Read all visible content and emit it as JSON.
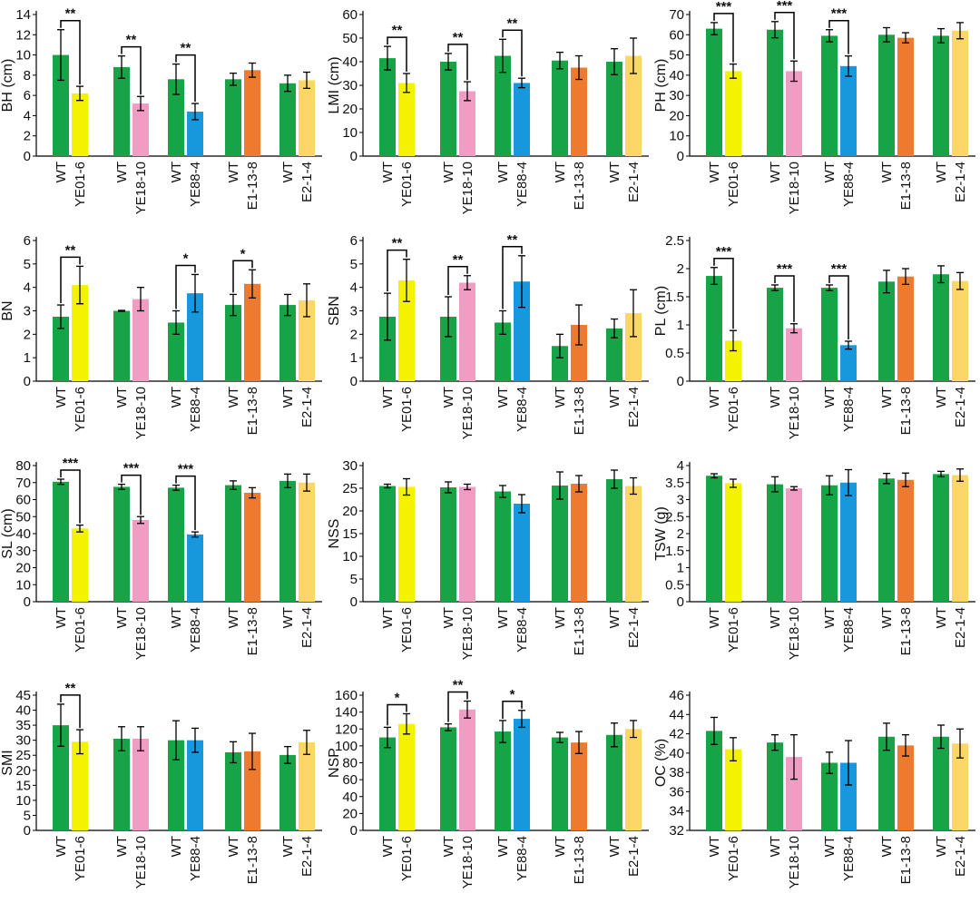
{
  "colors": {
    "WT": "#17a446",
    "YE01-6": "#f5f200",
    "YE18-10": "#f29cc4",
    "YE88-4": "#1798dc",
    "E1-13-8": "#ef7a2e",
    "E2-1-4": "#fdd66a"
  },
  "chart_data": [
    {
      "type": "bar",
      "ylabel": "BH (cm)",
      "ylim": [
        0,
        14
      ],
      "yticks": [
        0,
        2,
        4,
        6,
        8,
        10,
        12,
        14
      ],
      "ytick_labels": [
        "0",
        "2",
        "4",
        "6",
        "8",
        "10",
        "12",
        "14"
      ],
      "categories": [
        "WT",
        "YE01-6",
        "WT",
        "YE18-10",
        "WT",
        "YE88-4",
        "WT",
        "E1-13-8",
        "WT",
        "E2-1-4"
      ],
      "values": [
        10,
        6.2,
        8.8,
        5.2,
        7.6,
        4.4,
        7.6,
        8.5,
        7.2,
        7.5
      ],
      "errors": [
        2.5,
        0.7,
        1.1,
        0.7,
        1.5,
        0.8,
        0.6,
        0.7,
        0.8,
        0.8
      ],
      "significance": [
        {
          "pair": 0,
          "label": "**"
        },
        {
          "pair": 1,
          "label": "**"
        },
        {
          "pair": 2,
          "label": "**"
        }
      ]
    },
    {
      "type": "bar",
      "ylabel": "LMI (cm)",
      "ylim": [
        0,
        60
      ],
      "yticks": [
        0,
        10,
        20,
        30,
        40,
        50,
        60
      ],
      "ytick_labels": [
        "0",
        "10",
        "20",
        "30",
        "40",
        "50",
        "60"
      ],
      "categories": [
        "WT",
        "YE01-6",
        "WT",
        "YE18-10",
        "WT",
        "YE88-4",
        "WT",
        "E1-13-8",
        "WT",
        "E2-1-4"
      ],
      "values": [
        41.5,
        31,
        40,
        27.5,
        42.5,
        31,
        40.5,
        37.5,
        40,
        42.5
      ],
      "errors": [
        5,
        4,
        3.5,
        4,
        7,
        2,
        3.5,
        5,
        5.5,
        7.5
      ],
      "significance": [
        {
          "pair": 0,
          "label": "**"
        },
        {
          "pair": 1,
          "label": "**"
        },
        {
          "pair": 2,
          "label": "**"
        }
      ]
    },
    {
      "type": "bar",
      "ylabel": "PH (cm)",
      "ylim": [
        0,
        70
      ],
      "yticks": [
        0,
        10,
        20,
        30,
        40,
        50,
        60,
        70
      ],
      "ytick_labels": [
        "0",
        "10",
        "20",
        "30",
        "40",
        "50",
        "60",
        "70"
      ],
      "categories": [
        "WT",
        "YE01-6",
        "WT",
        "YE18-10",
        "WT",
        "YE88-4",
        "WT",
        "E1-13-8",
        "WT",
        "E2-1-4"
      ],
      "values": [
        63,
        42,
        62.5,
        42,
        59.5,
        44.5,
        60,
        58.5,
        59.5,
        62
      ],
      "errors": [
        3,
        3.5,
        4,
        5,
        3,
        5,
        3.5,
        2.5,
        3.5,
        4
      ],
      "significance": [
        {
          "pair": 0,
          "label": "***"
        },
        {
          "pair": 1,
          "label": "***"
        },
        {
          "pair": 2,
          "label": "***"
        }
      ]
    },
    {
      "type": "bar",
      "ylabel": "BN",
      "ylim": [
        0,
        6
      ],
      "yticks": [
        0,
        1,
        2,
        3,
        4,
        5,
        6
      ],
      "ytick_labels": [
        "0",
        "1",
        "2",
        "3",
        "4",
        "5",
        "6"
      ],
      "categories": [
        "WT",
        "YE01-6",
        "WT",
        "YE18-10",
        "WT",
        "YE88-4",
        "WT",
        "E1-13-8",
        "WT",
        "E2-1-4"
      ],
      "values": [
        2.75,
        4.1,
        3,
        3.5,
        2.5,
        3.75,
        3.25,
        4.15,
        3.25,
        3.45
      ],
      "errors": [
        0.5,
        0.8,
        0.02,
        0.5,
        0.5,
        0.8,
        0.45,
        0.6,
        0.45,
        0.7
      ],
      "significance": [
        {
          "pair": 0,
          "label": "**"
        },
        {
          "pair": 2,
          "label": "*"
        },
        {
          "pair": 3,
          "label": "*"
        }
      ]
    },
    {
      "type": "bar",
      "ylabel": "SBN",
      "ylim": [
        0,
        6
      ],
      "yticks": [
        0,
        1,
        2,
        3,
        4,
        5,
        6
      ],
      "ytick_labels": [
        "0",
        "1",
        "2",
        "3",
        "4",
        "5",
        "6"
      ],
      "categories": [
        "WT",
        "YE01-6",
        "WT",
        "YE18-10",
        "WT",
        "YE88-4",
        "WT",
        "E1-13-8",
        "WT",
        "E2-1-4"
      ],
      "values": [
        2.75,
        4.3,
        2.75,
        4.2,
        2.5,
        4.25,
        1.5,
        2.4,
        2.25,
        2.9
      ],
      "errors": [
        1,
        0.9,
        0.85,
        0.3,
        0.5,
        1.1,
        0.5,
        0.85,
        0.4,
        1
      ],
      "significance": [
        {
          "pair": 0,
          "label": "**"
        },
        {
          "pair": 1,
          "label": "**"
        },
        {
          "pair": 2,
          "label": "**"
        }
      ]
    },
    {
      "type": "bar",
      "ylabel": "PL (cm)",
      "ylim": [
        0,
        2.5
      ],
      "yticks": [
        0,
        0.5,
        1,
        1.5,
        2,
        2.5
      ],
      "ytick_labels": [
        "0",
        "0.5",
        "1",
        "1.5",
        "2",
        "2.5"
      ],
      "categories": [
        "WT",
        "YE01-6",
        "WT",
        "YE18-10",
        "WT",
        "YE88-4",
        "WT",
        "E1-13-8",
        "WT",
        "E2-1-4"
      ],
      "values": [
        1.87,
        0.72,
        1.66,
        0.94,
        1.66,
        0.64,
        1.77,
        1.86,
        1.9,
        1.78
      ],
      "errors": [
        0.15,
        0.18,
        0.05,
        0.08,
        0.05,
        0.07,
        0.2,
        0.14,
        0.15,
        0.15
      ],
      "significance": [
        {
          "pair": 0,
          "label": "***"
        },
        {
          "pair": 1,
          "label": "***"
        },
        {
          "pair": 2,
          "label": "***"
        }
      ]
    },
    {
      "type": "bar",
      "ylabel": "SL (cm)",
      "ylim": [
        0,
        80
      ],
      "yticks": [
        0,
        10,
        20,
        30,
        40,
        50,
        60,
        70,
        80
      ],
      "ytick_labels": [
        "0",
        "10",
        "20",
        "30",
        "40",
        "50",
        "60",
        "70",
        "80"
      ],
      "categories": [
        "WT",
        "YE01-6",
        "WT",
        "YE18-10",
        "WT",
        "YE88-4",
        "WT",
        "E1-13-8",
        "WT",
        "E2-1-4"
      ],
      "values": [
        70.5,
        43,
        67.5,
        48,
        67,
        39.5,
        68.5,
        64,
        71,
        70
      ],
      "errors": [
        1.5,
        2,
        1.5,
        2,
        1.5,
        1.5,
        2.5,
        3,
        4,
        5
      ],
      "significance": [
        {
          "pair": 0,
          "label": "***"
        },
        {
          "pair": 1,
          "label": "***"
        },
        {
          "pair": 2,
          "label": "***"
        }
      ]
    },
    {
      "type": "bar",
      "ylabel": "NSS",
      "ylim": [
        0,
        30
      ],
      "yticks": [
        0,
        5,
        10,
        15,
        20,
        25,
        30
      ],
      "ytick_labels": [
        "0",
        "5",
        "10",
        "15",
        "20",
        "25",
        "30"
      ],
      "categories": [
        "WT",
        "YE01-6",
        "WT",
        "YE18-10",
        "WT",
        "YE88-4",
        "WT",
        "E1-13-8",
        "WT",
        "E2-1-4"
      ],
      "values": [
        25.5,
        25.3,
        25.2,
        25.3,
        24.3,
        21.6,
        25.6,
        26,
        27,
        25.5
      ],
      "errors": [
        0.4,
        1.8,
        1.2,
        0.6,
        1.3,
        2,
        3,
        1.8,
        2,
        1.8
      ],
      "significance": []
    },
    {
      "type": "bar",
      "ylabel": "TSW (g)",
      "ylim": [
        0,
        4
      ],
      "yticks": [
        0,
        0.5,
        1,
        1.5,
        2,
        2.5,
        3,
        3.5,
        4
      ],
      "ytick_labels": [
        "0",
        "0.5",
        "1",
        "1.5",
        "2",
        "2.5",
        "3",
        "3.5",
        "4"
      ],
      "categories": [
        "WT",
        "YE01-6",
        "WT",
        "YE18-10",
        "WT",
        "YE88-4",
        "WT",
        "E1-13-8",
        "WT",
        "E2-1-4"
      ],
      "values": [
        3.7,
        3.48,
        3.45,
        3.33,
        3.42,
        3.5,
        3.62,
        3.58,
        3.75,
        3.72
      ],
      "errors": [
        0.06,
        0.12,
        0.22,
        0.05,
        0.28,
        0.38,
        0.15,
        0.2,
        0.08,
        0.18
      ],
      "significance": []
    },
    {
      "type": "bar",
      "ylabel": "SMI",
      "ylim": [
        0,
        45
      ],
      "yticks": [
        0,
        5,
        10,
        15,
        20,
        25,
        30,
        35,
        40,
        45
      ],
      "ytick_labels": [
        "0",
        "5",
        "10",
        "15",
        "20",
        "25",
        "30",
        "35",
        "40",
        "45"
      ],
      "categories": [
        "WT",
        "YE01-6",
        "WT",
        "YE18-10",
        "WT",
        "YE88-4",
        "WT",
        "E1-13-8",
        "WT",
        "E2-1-4"
      ],
      "values": [
        35,
        29.5,
        30.5,
        30.5,
        30,
        30,
        26,
        26.3,
        25.1,
        29.3
      ],
      "errors": [
        7,
        4,
        4,
        4,
        6.5,
        4,
        3.5,
        6,
        2.8,
        4
      ],
      "significance": [
        {
          "pair": 0,
          "label": "**"
        }
      ]
    },
    {
      "type": "bar",
      "ylabel": "NSP",
      "ylim": [
        0,
        160
      ],
      "yticks": [
        0,
        20,
        40,
        60,
        80,
        100,
        120,
        140,
        160
      ],
      "ytick_labels": [
        "0",
        "20",
        "40",
        "60",
        "80",
        "100",
        "120",
        "140",
        "160"
      ],
      "categories": [
        "WT",
        "YE01-6",
        "WT",
        "YE18-10",
        "WT",
        "YE88-4",
        "WT",
        "E1-13-8",
        "WT",
        "E2-1-4"
      ],
      "values": [
        110,
        126,
        122,
        143,
        117,
        132,
        110,
        104,
        113,
        120
      ],
      "errors": [
        12,
        12,
        4,
        10,
        13,
        10,
        6,
        13,
        14,
        10
      ],
      "significance": [
        {
          "pair": 0,
          "label": "*"
        },
        {
          "pair": 1,
          "label": "**"
        },
        {
          "pair": 2,
          "label": "*"
        }
      ]
    },
    {
      "type": "bar",
      "ylabel": "OC (%)",
      "ylim": [
        32,
        46
      ],
      "yticks": [
        32,
        34,
        36,
        38,
        40,
        42,
        44,
        46
      ],
      "ytick_labels": [
        "32",
        "34",
        "36",
        "38",
        "40",
        "42",
        "44",
        "46"
      ],
      "categories": [
        "WT",
        "YE01-6",
        "WT",
        "YE18-10",
        "WT",
        "YE88-4",
        "WT",
        "E1-13-8",
        "WT",
        "E2-1-4"
      ],
      "values": [
        42.3,
        40.4,
        41.1,
        39.6,
        39,
        39,
        41.7,
        40.8,
        41.7,
        41
      ],
      "errors": [
        1.4,
        1.2,
        0.8,
        2.3,
        1.1,
        2.3,
        1.4,
        1.1,
        1.2,
        1.5
      ],
      "significance": []
    }
  ]
}
